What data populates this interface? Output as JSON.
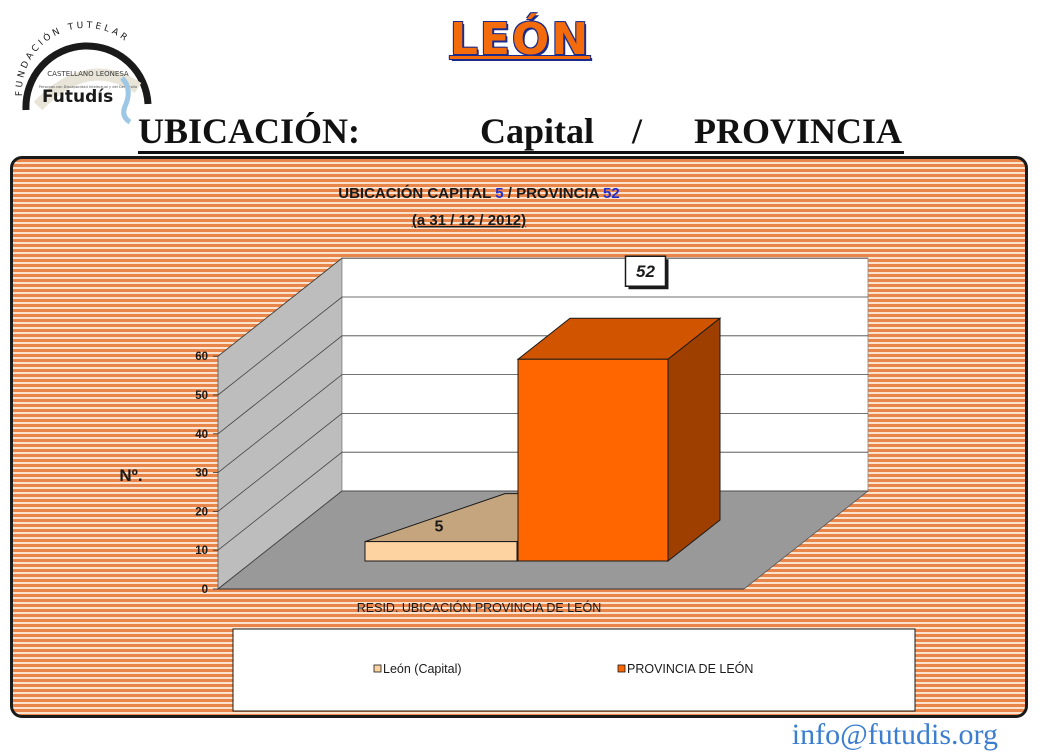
{
  "header": {
    "title": "LEÓN",
    "logo_text_top": "FUNDACIÓN TUTELAR",
    "logo_text_ribbon": "CASTELLANO LEONESA",
    "logo_text_small": "Personas con Discapacidad Intelectual y del Desarrollo",
    "logo_brand": "Futudís"
  },
  "subtitle": {
    "part1": "UBICACIÓN:",
    "part2": "Capital",
    "part3": "/",
    "part4": "PROVINCIA"
  },
  "chart_data": {
    "type": "bar",
    "title_parts": [
      "UBICACIÓN CAPITAL ",
      "5",
      " / PROVINCIA ",
      "52"
    ],
    "subtitle": "(a 31 / 12 / 2012)",
    "xlabel": "RESID. UBICACIÓN PROVINCIA DE LEÓN",
    "ylabel": "Nº.",
    "ylim": [
      0,
      60
    ],
    "yticks": [
      "0",
      "10",
      "20",
      "30",
      "40",
      "50",
      "60"
    ],
    "series": [
      {
        "name": "León (Capital)",
        "value": 5,
        "label": "5",
        "color": "#fcd3a1"
      },
      {
        "name": "PROVINCIA DE LEÓN",
        "value": 52,
        "label": "52",
        "color": "#ff6600"
      }
    ],
    "legend_position": "bottom",
    "grid": true
  },
  "colors": {
    "accent": "#f36b0a",
    "title_blue": "#1a2b8c",
    "value_blue": "#2030d0",
    "email": "#3b7ecf"
  },
  "footer": {
    "email": "info@futudis.org"
  }
}
